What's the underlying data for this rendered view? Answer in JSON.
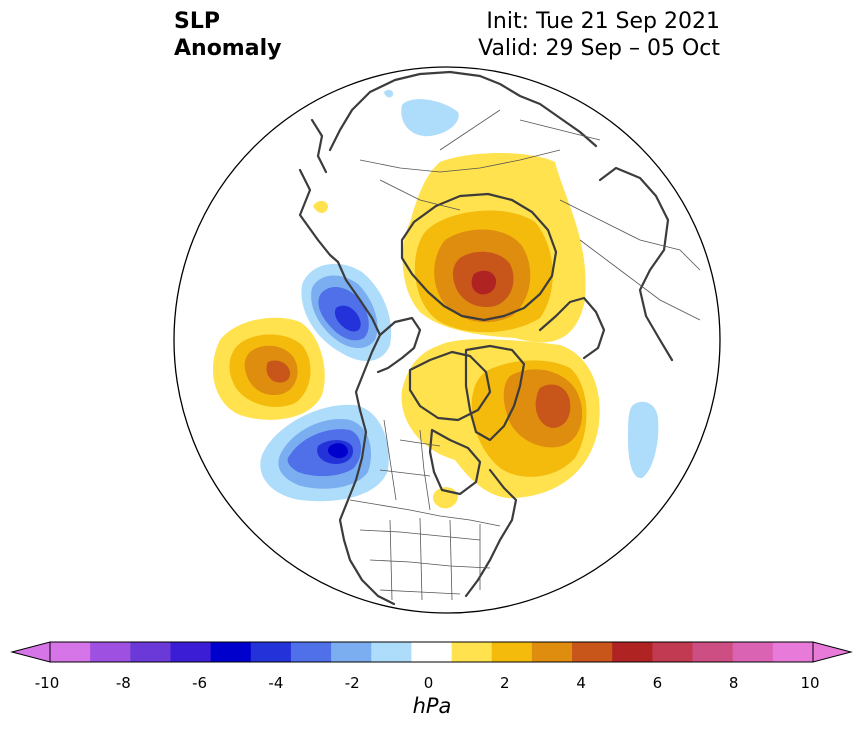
{
  "title": {
    "field": "SLP\nAnomaly",
    "init": "Init: Tue 21 Sep 2021",
    "valid": "Valid: 29 Sep – 05 Oct"
  },
  "colorbar": {
    "unit": "hPa",
    "tick_labels": [
      "-10",
      "-8",
      "-6",
      "-4",
      "-2",
      "0",
      "2",
      "4",
      "6",
      "8",
      "10"
    ],
    "colors": [
      "#d675e8",
      "#9e51e0",
      "#6c39d9",
      "#3c1dd6",
      "#0000cd",
      "#2433d9",
      "#4f70e8",
      "#7aaef1",
      "#aedcfb",
      "#ffffff",
      "#ffe24d",
      "#f4bb0c",
      "#df8d0f",
      "#c8561a",
      "#b02323",
      "#c13a52",
      "#cd4e82",
      "#da63b3",
      "#e87ad9"
    ],
    "extend_low_color": "#d675e8",
    "extend_high_color": "#e87ad9"
  },
  "anomalies": [
    {
      "id": "siberia-high",
      "levels": [
        1,
        2,
        3,
        4,
        5
      ]
    },
    {
      "id": "greenland-high",
      "levels": [
        1,
        2,
        3,
        4
      ]
    },
    {
      "id": "north-pacific-high",
      "levels": [
        1,
        2,
        3,
        4
      ]
    },
    {
      "id": "gulf-of-alaska-low",
      "levels": [
        -1,
        -2,
        -3,
        -4,
        -5
      ]
    },
    {
      "id": "kamchatka-low",
      "levels": [
        -1,
        -2,
        -3,
        -4
      ]
    },
    {
      "id": "arctic-low",
      "levels": [
        -1
      ]
    },
    {
      "id": "atlantic-low",
      "levels": [
        -1
      ]
    },
    {
      "id": "eastern-canada-high",
      "levels": [
        1
      ]
    },
    {
      "id": "europe-high-fringe",
      "levels": [
        1
      ]
    }
  ]
}
